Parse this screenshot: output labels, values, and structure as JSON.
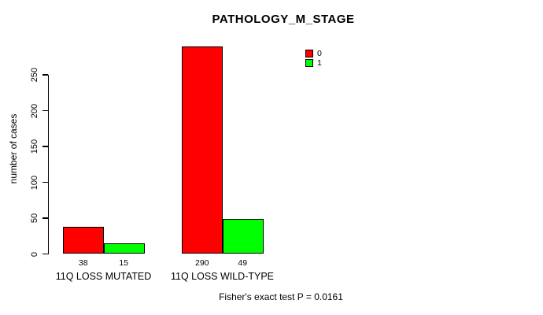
{
  "chart_data": {
    "type": "bar",
    "title": "PATHOLOGY_M_STAGE",
    "ylabel": "number of cases",
    "xlabel": "",
    "ylim": [
      0,
      290
    ],
    "yticks": [
      0,
      50,
      100,
      150,
      200,
      250
    ],
    "grid": false,
    "legend_position": "top-right-inside",
    "categories": [
      "11Q LOSS MUTATED",
      "11Q LOSS WILD-TYPE"
    ],
    "series": [
      {
        "name": "0",
        "color": "#FF0000",
        "values": [
          38,
          290
        ]
      },
      {
        "name": "1",
        "color": "#00FF00",
        "values": [
          15,
          49
        ]
      }
    ],
    "show_value_labels": true,
    "annotation": "Fisher's exact test P = 0.0161"
  }
}
